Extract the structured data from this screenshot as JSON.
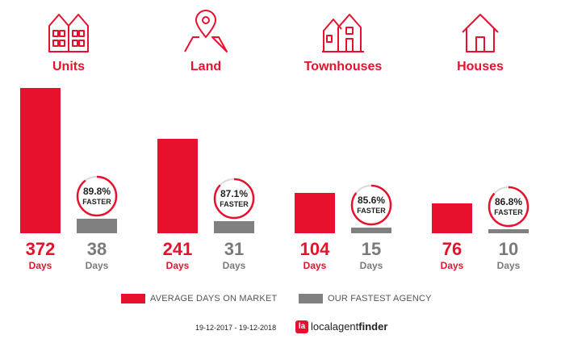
{
  "chart_data": {
    "type": "bar",
    "categories": [
      "Units",
      "Land",
      "Townhouses",
      "Houses"
    ],
    "series": [
      {
        "name": "AVERAGE DAYS ON MARKET",
        "values": [
          372,
          241,
          104,
          76
        ],
        "color": "#e8112d"
      },
      {
        "name": "OUR FASTEST AGENCY",
        "values": [
          38,
          31,
          15,
          10
        ],
        "color": "#808080"
      }
    ],
    "value_unit": "Days",
    "faster_percent": [
      "89.8%",
      "87.1%",
      "85.6%",
      "86.8%"
    ],
    "faster_fraction": [
      0.898,
      0.871,
      0.856,
      0.868
    ],
    "faster_label": "FASTER",
    "icons": [
      "units-icon",
      "land-pin-icon",
      "townhouses-icon",
      "house-icon"
    ],
    "ylim": [
      0,
      372
    ],
    "legend_position": "bottom",
    "grid": false
  },
  "footer": {
    "period": "19-12-2017 - 19-12-2018",
    "brand_light": "localagent",
    "brand_bold": "finder",
    "brand_logo_glyph": "la"
  },
  "colors": {
    "accent": "#e8112d",
    "secondary": "#808080"
  }
}
